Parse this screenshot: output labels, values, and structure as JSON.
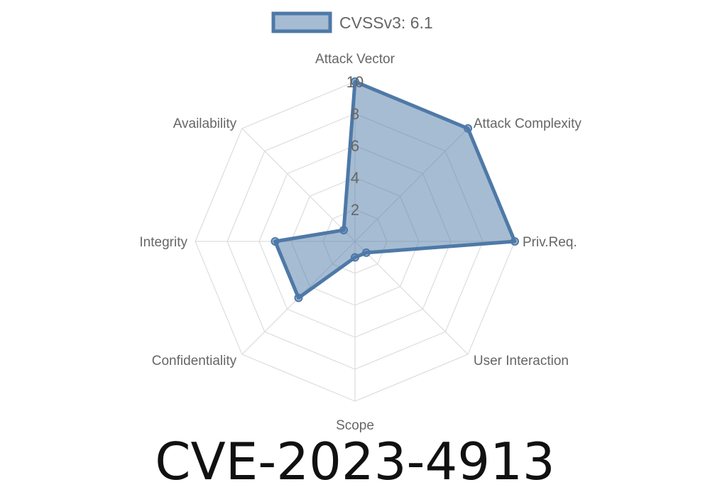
{
  "chart_data": {
    "type": "radar",
    "legend": {
      "label": "CVSSv3: 6.1",
      "placement": "top"
    },
    "axes": [
      "Attack Vector",
      "Attack Complexity",
      "Priv.Req.",
      "User Interaction",
      "Scope",
      "Confidentiality",
      "Integrity",
      "Availability"
    ],
    "series": [
      {
        "name": "CVSSv3: 6.1",
        "values": [
          10,
          10,
          10,
          1,
          1,
          5,
          5,
          1
        ]
      }
    ],
    "r_ticks": [
      "2",
      "4",
      "6",
      "8",
      "10"
    ],
    "r_range": [
      0,
      10
    ],
    "grid": true,
    "colors": {
      "line": "#4e79a7",
      "fill": "rgba(78,121,167,0.5)",
      "grid": "#dddddd",
      "label": "#666666"
    }
  },
  "title": "CVE-2023-4913"
}
